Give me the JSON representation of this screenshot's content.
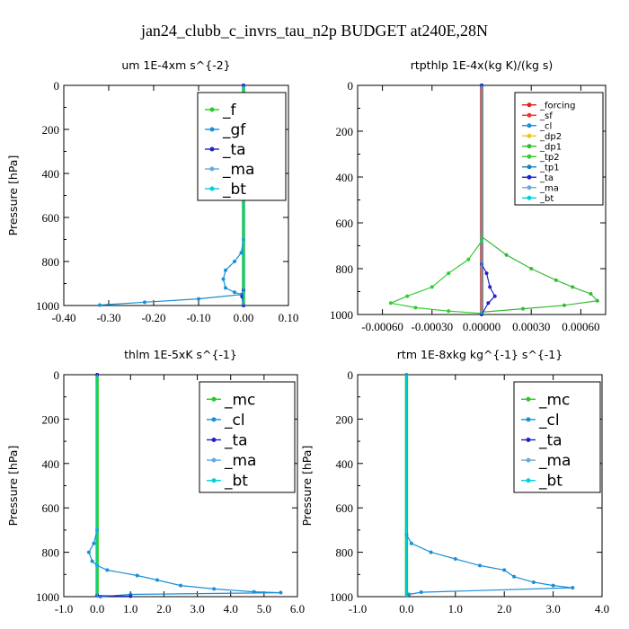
{
  "figure": {
    "title": "jan24_clubb_c_invrs_tau_n2p  BUDGET at240E,28N"
  },
  "series_colors": {
    "_f": "#22cc22",
    "_gf": "#1a8fd6",
    "_ta": "#2222cc",
    "_ma": "#66aadd",
    "_bt": "#00d0e0",
    "_forcing": "#dd2222",
    "_sf": "#ee3333",
    "_cl": "#1a8fd6",
    "_dp2": "#e8c81a",
    "_dp1": "#33bb33",
    "_tp2": "#33cc33",
    "_tp1": "#1a7fc0",
    "_mc": "#22cc22"
  },
  "chart_data": [
    {
      "type": "line",
      "title": "um  1E-4xm s^{-2}",
      "ylabel": "Pressure [hPa]",
      "xlim": [
        -0.4,
        0.1
      ],
      "ylim": [
        1000,
        0
      ],
      "xticks": [
        "-0.40",
        "-0.30",
        "-0.20",
        "-0.10",
        "0.00",
        "0.10"
      ],
      "yticks": [
        "0",
        "200",
        "400",
        "600",
        "800",
        "1000"
      ],
      "legend_position": "top-right",
      "legend_font": 17,
      "series": [
        {
          "name": "_f",
          "points": [
            [
              0.0,
              0
            ],
            [
              0.0,
              1000
            ]
          ]
        },
        {
          "name": "_gf",
          "points": [
            [
              0.0,
              0
            ],
            [
              0.0,
              500
            ],
            [
              0.0,
              700
            ],
            [
              -0.005,
              760
            ],
            [
              -0.02,
              800
            ],
            [
              -0.04,
              840
            ],
            [
              -0.045,
              880
            ],
            [
              -0.04,
              920
            ],
            [
              -0.02,
              940
            ],
            [
              -0.005,
              950
            ],
            [
              -0.1,
              970
            ],
            [
              -0.22,
              985
            ],
            [
              -0.32,
              998
            ]
          ]
        },
        {
          "name": "_ta",
          "points": [
            [
              0.0,
              0
            ],
            [
              0.0,
              930
            ],
            [
              -0.003,
              960
            ],
            [
              0.0,
              1000
            ]
          ]
        },
        {
          "name": "_ma",
          "points": [
            [
              0.0,
              0
            ],
            [
              0.0,
              1000
            ]
          ]
        },
        {
          "name": "_bt",
          "points": [
            [
              0.0,
              0
            ],
            [
              0.0,
              1000
            ]
          ]
        }
      ]
    },
    {
      "type": "line",
      "title": "rtpthlp  1E-4x(kg K)/(kg s)",
      "ylabel": "",
      "xlim": [
        -0.00075,
        0.00075
      ],
      "ylim": [
        1000,
        0
      ],
      "xticks": [
        "-0.00060",
        "-0.00030",
        "0.00000",
        "0.00030",
        "0.00060"
      ],
      "yticks": [
        "0",
        "200",
        "400",
        "600",
        "800",
        "1000"
      ],
      "legend_position": "top-right",
      "legend_font": 10,
      "series": [
        {
          "name": "_forcing",
          "points": [
            [
              0.0,
              0
            ],
            [
              0.0,
              1000
            ]
          ]
        },
        {
          "name": "_sf",
          "points": [
            [
              0.0,
              0
            ],
            [
              0.0,
              1000
            ]
          ]
        },
        {
          "name": "_cl",
          "points": [
            [
              0.0,
              0
            ],
            [
              0.0,
              1000
            ]
          ]
        },
        {
          "name": "_dp2",
          "points": [
            [
              0.0,
              0
            ],
            [
              0.0,
              1000
            ]
          ]
        },
        {
          "name": "_dp1",
          "points": [
            [
              0.0,
              0
            ],
            [
              0.0,
              660
            ],
            [
              0.00015,
              740
            ],
            [
              0.0003,
              800
            ],
            [
              0.00045,
              850
            ],
            [
              0.00055,
              880
            ],
            [
              0.00066,
              910
            ],
            [
              0.0007,
              940
            ],
            [
              0.0005,
              960
            ],
            [
              0.00025,
              975
            ],
            [
              0.0,
              990
            ]
          ]
        },
        {
          "name": "_tp2",
          "points": [
            [
              0.0,
              0
            ],
            [
              0.0,
              680
            ],
            [
              -8e-05,
              760
            ],
            [
              -0.0002,
              820
            ],
            [
              -0.0003,
              880
            ],
            [
              -0.00045,
              920
            ],
            [
              -0.00055,
              950
            ],
            [
              -0.0004,
              970
            ],
            [
              -0.0002,
              985
            ],
            [
              0.0,
              995
            ]
          ]
        },
        {
          "name": "_tp1",
          "points": [
            [
              0.0,
              0
            ],
            [
              0.0,
              1000
            ]
          ]
        },
        {
          "name": "_ta",
          "points": [
            [
              0.0,
              0
            ],
            [
              0.0,
              780
            ],
            [
              3e-05,
              820
            ],
            [
              5e-05,
              880
            ],
            [
              8e-05,
              920
            ],
            [
              4e-05,
              950
            ],
            [
              0.0,
              1000
            ]
          ]
        },
        {
          "name": "_ma",
          "points": [
            [
              0.0,
              0
            ],
            [
              0.0,
              1000
            ]
          ]
        },
        {
          "name": "_bt",
          "points": [
            [
              0.0,
              0
            ],
            [
              0.0,
              1000
            ]
          ]
        }
      ]
    },
    {
      "type": "line",
      "title": "thlm  1E-5xK s^{-1}",
      "ylabel": "Pressure [hPa]",
      "xlim": [
        -1.0,
        6.0
      ],
      "ylim": [
        1000,
        0
      ],
      "xticks": [
        "-1.0",
        "0.0",
        "1.0",
        "2.0",
        "3.0",
        "4.0",
        "5.0",
        "6.0"
      ],
      "yticks": [
        "0",
        "200",
        "400",
        "600",
        "800",
        "1000"
      ],
      "legend_position": "top-right",
      "legend_font": 17,
      "series": [
        {
          "name": "_mc",
          "points": [
            [
              0.0,
              0
            ],
            [
              0.0,
              1000
            ]
          ]
        },
        {
          "name": "_cl",
          "points": [
            [
              0.0,
              0
            ],
            [
              0.0,
              700
            ],
            [
              -0.1,
              760
            ],
            [
              -0.25,
              800
            ],
            [
              -0.15,
              840
            ],
            [
              0.0,
              860
            ],
            [
              0.3,
              880
            ],
            [
              1.2,
              905
            ],
            [
              1.8,
              925
            ],
            [
              2.5,
              950
            ],
            [
              3.5,
              965
            ],
            [
              4.7,
              978
            ],
            [
              5.5,
              982
            ],
            [
              1.0,
              990
            ],
            [
              0.1,
              1000
            ]
          ]
        },
        {
          "name": "_ta",
          "points": [
            [
              0.0,
              0
            ],
            [
              0.0,
              995
            ],
            [
              1.0,
              998
            ]
          ]
        },
        {
          "name": "_ma",
          "points": [
            [
              0.0,
              0
            ],
            [
              0.0,
              1000
            ]
          ]
        },
        {
          "name": "_bt",
          "points": [
            [
              0.0,
              0
            ],
            [
              0.0,
              1000
            ]
          ]
        }
      ]
    },
    {
      "type": "line",
      "title": "rtm  1E-8xkg kg^{-1} s^{-1}",
      "ylabel": "Pressure [hPa]",
      "xlim": [
        -1.0,
        4.0
      ],
      "ylim": [
        1000,
        0
      ],
      "xticks": [
        "-1.0",
        "0.0",
        "1.0",
        "2.0",
        "3.0",
        "4.0"
      ],
      "yticks": [
        "0",
        "200",
        "400",
        "600",
        "800",
        "1000"
      ],
      "legend_position": "top-right",
      "legend_font": 17,
      "series": [
        {
          "name": "_mc",
          "points": [
            [
              0.0,
              0
            ],
            [
              0.0,
              1000
            ]
          ]
        },
        {
          "name": "_cl",
          "points": [
            [
              0.0,
              0
            ],
            [
              0.0,
              720
            ],
            [
              0.1,
              760
            ],
            [
              0.5,
              800
            ],
            [
              1.0,
              830
            ],
            [
              1.5,
              860
            ],
            [
              2.0,
              880
            ],
            [
              2.2,
              910
            ],
            [
              2.6,
              935
            ],
            [
              3.0,
              950
            ],
            [
              3.4,
              960
            ],
            [
              0.3,
              980
            ],
            [
              0.05,
              990
            ]
          ]
        },
        {
          "name": "_ta",
          "points": [
            [
              0.0,
              0
            ],
            [
              0.0,
              1000
            ]
          ]
        },
        {
          "name": "_ma",
          "points": [
            [
              0.0,
              0
            ],
            [
              0.0,
              1000
            ]
          ]
        },
        {
          "name": "_bt",
          "points": [
            [
              0.0,
              0
            ],
            [
              0.0,
              1000
            ]
          ]
        }
      ]
    }
  ]
}
